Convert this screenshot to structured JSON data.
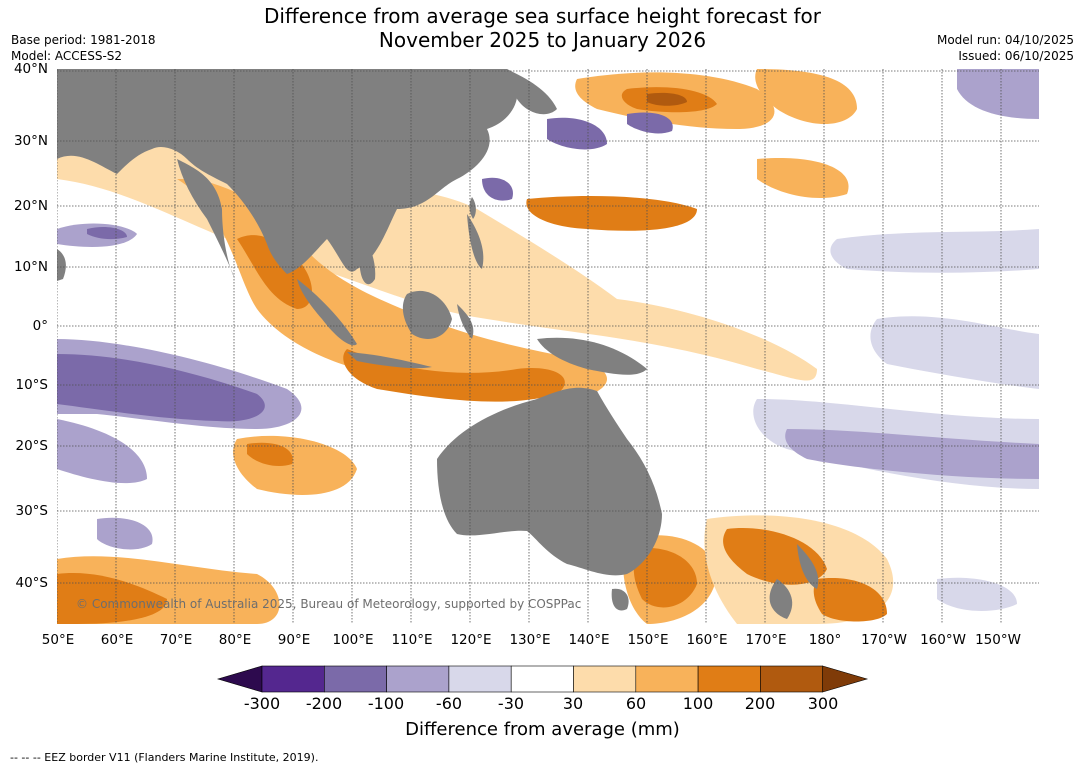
{
  "title_line1": "Difference from average sea surface height forecast for",
  "title_line2": "November 2025 to January 2026",
  "base_period": "Base period: 1981-2018",
  "model": "Model: ACCESS-S2",
  "model_run": "Model run: 04/10/2025",
  "issued": "Issued: 06/10/2025",
  "lat_labels": [
    "40°N",
    "30°N",
    "20°N",
    "10°N",
    "0°",
    "10°S",
    "20°S",
    "30°S",
    "40°S"
  ],
  "lon_labels": [
    "50°E",
    "60°E",
    "70°E",
    "80°E",
    "90°E",
    "100°E",
    "110°E",
    "120°E",
    "130°E",
    "140°E",
    "150°E",
    "160°E",
    "170°E",
    "180°",
    "170°W",
    "160°W",
    "150°W"
  ],
  "copyright": "© Commonwealth of Australia 2025, Bureau of Meteorology, supported by COSPPac",
  "colorbar": {
    "ticks": [
      "-300",
      "-200",
      "-100",
      "-60",
      "-30",
      "30",
      "60",
      "100",
      "200",
      "300"
    ],
    "colors": [
      "#2d0a4e",
      "#54278f",
      "#7b6aa9",
      "#aba2cc",
      "#d8d8ea",
      "#ffffff",
      "#fddcab",
      "#f8b25a",
      "#e07d16",
      "#b05a0f",
      "#7f3b08"
    ],
    "label": "Difference from average (mm)"
  },
  "footer": "--  --  -- EEZ border V11 (Flanders Marine Institute, 2019).",
  "palette": {
    "land": "#808080",
    "grid": "#505050"
  }
}
